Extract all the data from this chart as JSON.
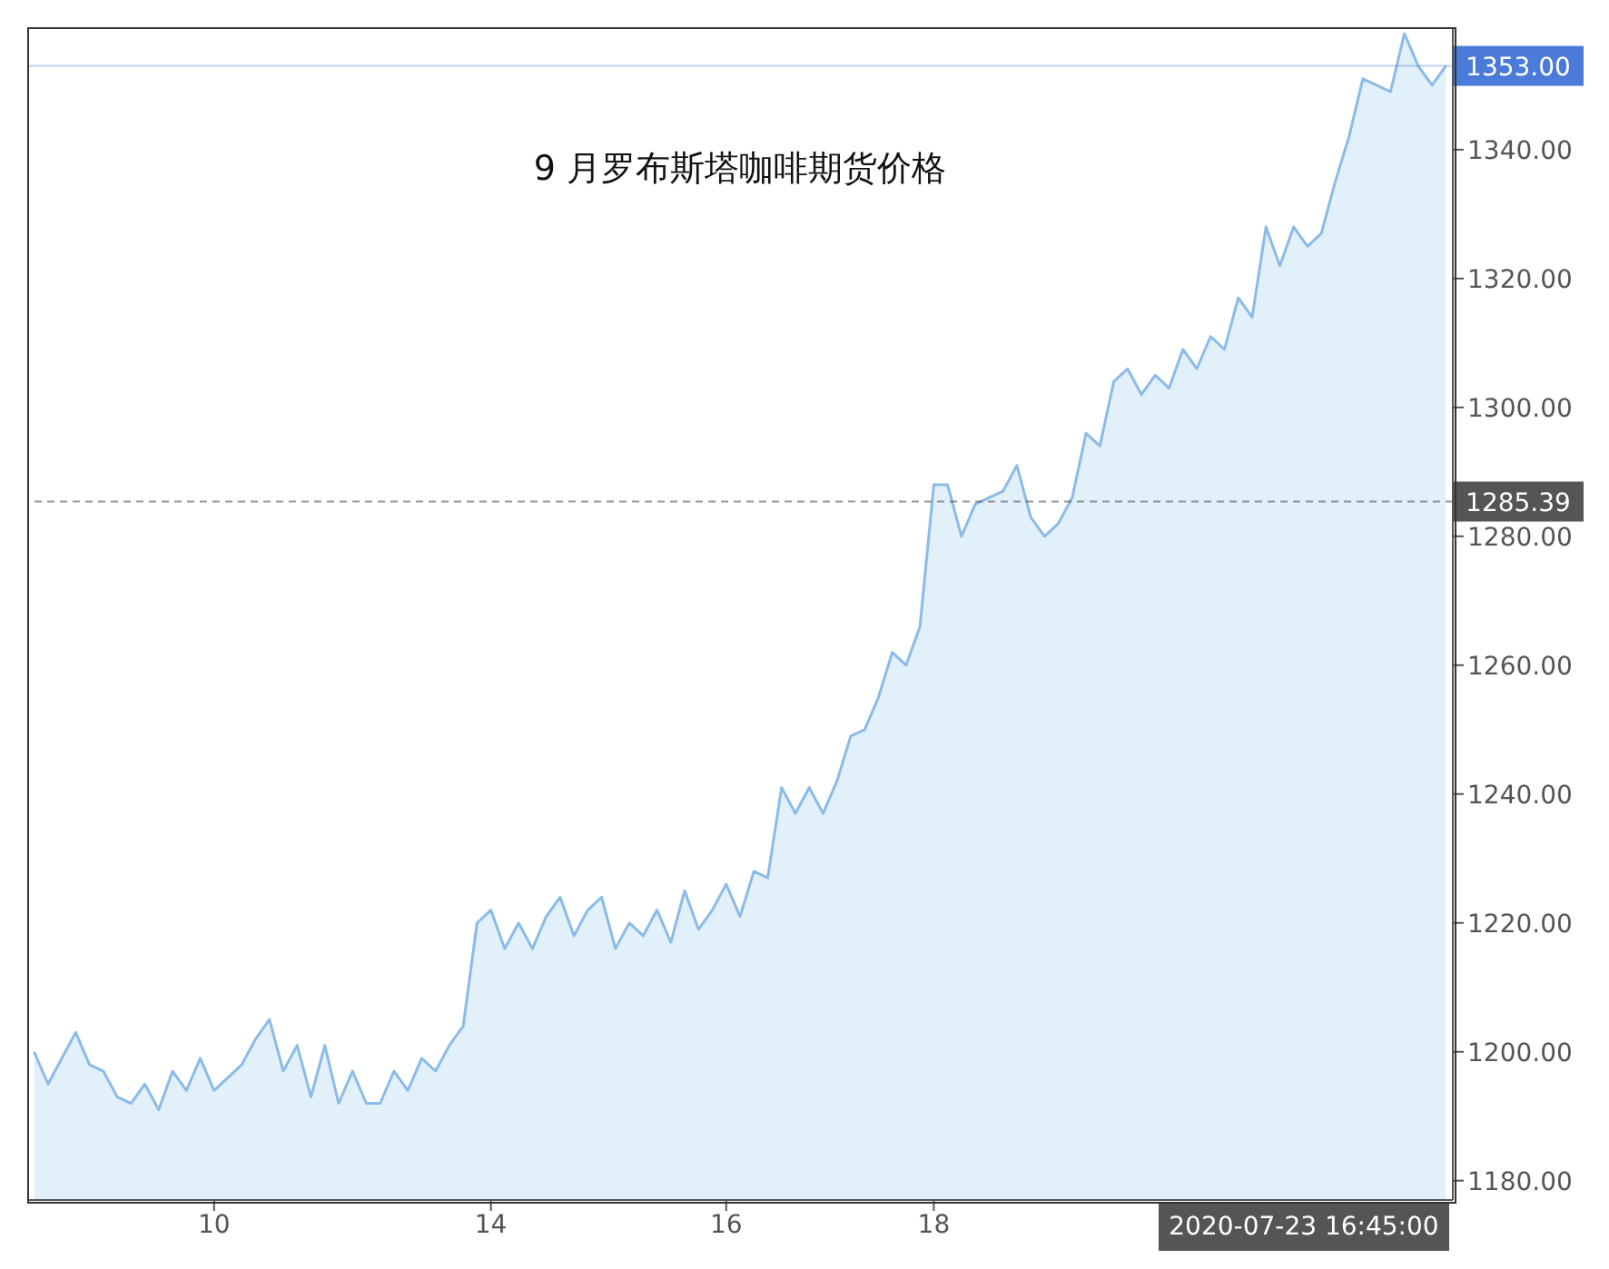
{
  "chart_data": {
    "type": "area",
    "title": "9 月罗布斯塔咖啡期货价格",
    "categories": [
      null,
      null,
      null,
      null,
      null,
      null,
      null,
      null,
      null,
      null,
      null,
      null,
      null,
      "10",
      null,
      null,
      null,
      null,
      null,
      null,
      null,
      null,
      null,
      null,
      null,
      null,
      null,
      null,
      null,
      null,
      null,
      null,
      null,
      "14",
      null,
      null,
      null,
      null,
      null,
      null,
      null,
      null,
      null,
      null,
      null,
      null,
      null,
      null,
      null,
      null,
      "16",
      null,
      null,
      null,
      null,
      null,
      null,
      null,
      null,
      null,
      null,
      null,
      null,
      null,
      null,
      "18",
      null,
      null,
      null,
      null,
      null,
      null,
      null,
      null,
      null,
      null,
      null,
      null,
      null,
      null,
      null,
      null,
      null,
      null,
      null,
      null,
      null,
      null,
      null,
      null,
      null,
      null,
      null,
      null,
      null,
      null,
      null,
      null,
      null,
      null,
      null,
      null,
      null
    ],
    "annotations": [
      "2020-07-23 16:45:00"
    ],
    "series": [
      {
        "color": "#8bbbe8",
        "values": [
          1200,
          1195,
          1199,
          1203,
          1198,
          1197,
          1193,
          1192,
          1195,
          1191,
          1197,
          1194,
          1199,
          1194,
          1196,
          1198,
          1202,
          1205,
          1197,
          1201,
          1193,
          1201,
          1192,
          1197,
          1192,
          1192,
          1197,
          1194,
          1199,
          1197,
          1201,
          1204,
          1220,
          1222,
          1216,
          1220,
          1216,
          1221,
          1224,
          1218,
          1222,
          1224,
          1216,
          1220,
          1218,
          1222,
          1217,
          1225,
          1219,
          1222,
          1226,
          1221,
          1228,
          1227,
          1241,
          1237,
          1241,
          1237,
          1242,
          1249,
          1250,
          1255,
          1262,
          1260,
          1266,
          1288,
          1288,
          1280,
          1285,
          1286,
          1287,
          1291,
          1283,
          1280,
          1282,
          1286,
          1296,
          1294,
          1304,
          1306,
          1302,
          1305,
          1303,
          1309,
          1306,
          1311,
          1309,
          1317,
          1314,
          1328,
          1322,
          1328,
          1325,
          1327,
          1335,
          1342,
          1351,
          1350,
          1349,
          1358,
          1353,
          1350,
          1353
        ]
      }
    ],
    "ylim": [
      1177,
      1359
    ],
    "yticks": [
      {
        "value": 1180,
        "label": "1180.00"
      },
      {
        "value": 1200,
        "label": "1200.00"
      },
      {
        "value": 1220,
        "label": "1220.00"
      },
      {
        "value": 1240,
        "label": "1240.00"
      },
      {
        "value": 1260,
        "label": "1260.00"
      },
      {
        "value": 1280,
        "label": "1280.00"
      },
      {
        "value": 1300,
        "label": "1300.00"
      },
      {
        "value": 1320,
        "label": "1320.00"
      },
      {
        "value": 1340,
        "label": "1340.00"
      }
    ],
    "ref_lines": [
      {
        "axis": "y",
        "value": 1353,
        "label": "1353.00",
        "color": "#4a7bd8",
        "line_style": "solid"
      },
      {
        "axis": "y",
        "value": 1285.39,
        "label": "1285.39",
        "color": "#555555",
        "line_style": "dashed"
      }
    ],
    "grid": false,
    "marker": "none",
    "line_style": "solid"
  }
}
